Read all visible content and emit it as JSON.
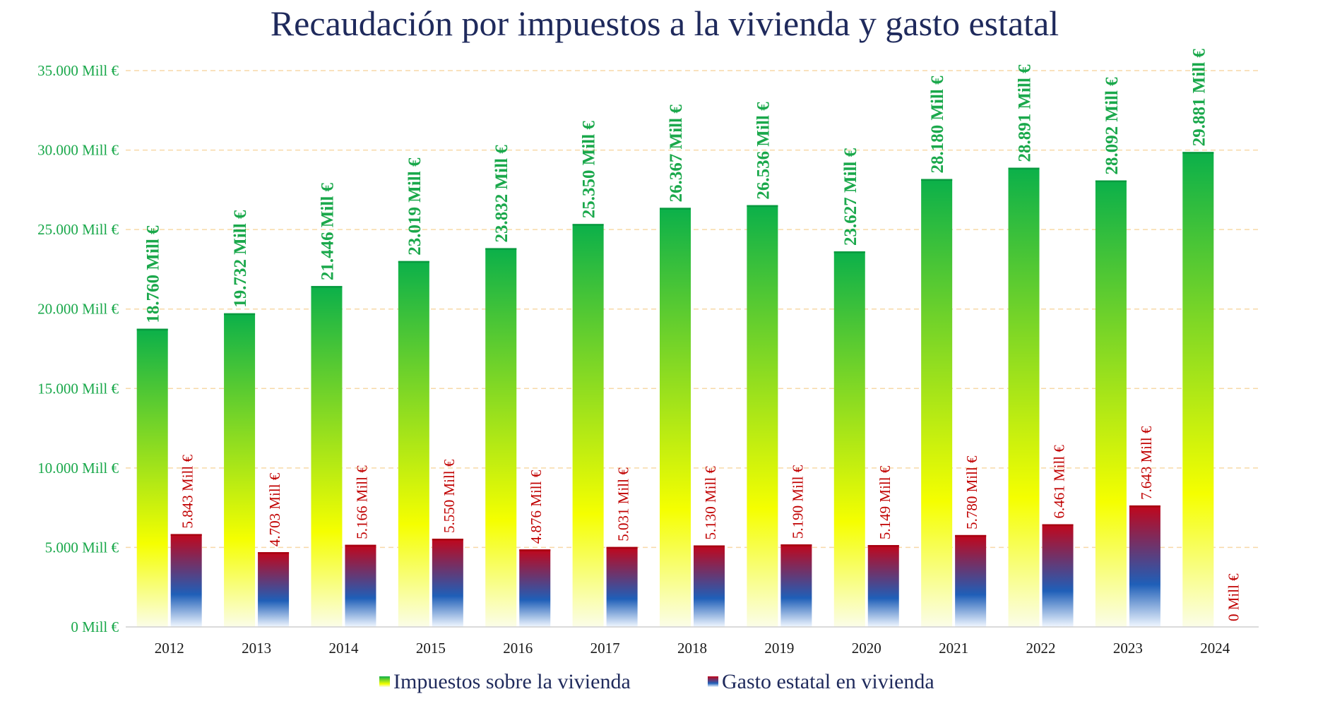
{
  "chart_data": {
    "type": "bar",
    "title": "Recaudación por impuestos a la vivienda y gasto estatal",
    "categories": [
      "2012",
      "2013",
      "2014",
      "2015",
      "2016",
      "2017",
      "2018",
      "2019",
      "2020",
      "2021",
      "2022",
      "2023",
      "2024"
    ],
    "series": [
      {
        "name": "Impuestos sobre la vivienda",
        "values": [
          18760,
          19732,
          21446,
          23019,
          23832,
          25350,
          26367,
          26536,
          23627,
          28180,
          28891,
          28092,
          29881
        ],
        "labels": [
          "18.760 Mill €",
          "19.732 Mill €",
          "21.446 Mill €",
          "23.019 Mill €",
          "23.832 Mill €",
          "25.350 Mill €",
          "26.367 Mill €",
          "26.536 Mill €",
          "23.627 Mill €",
          "28.180 Mill €",
          "28.891 Mill €",
          "28.092 Mill €",
          "29.881 Mill €"
        ],
        "gradient": [
          "#0bb04a",
          "#f5ff00",
          "#fbfde8"
        ],
        "label_color": "#1aa84b"
      },
      {
        "name": "Gasto estatal en vivienda",
        "values": [
          5843,
          4703,
          5166,
          5550,
          4876,
          5031,
          5130,
          5190,
          5149,
          5780,
          6461,
          7643,
          0
        ],
        "labels": [
          "5.843 Mill €",
          "4.703 Mill €",
          "5.166 Mill €",
          "5.550 Mill €",
          "4.876 Mill €",
          "5.031 Mill €",
          "5.130 Mill €",
          "5.190 Mill €",
          "5.149 Mill €",
          "5.780 Mill €",
          "6.461 Mill €",
          "7.643 Mill €",
          "0 Mill €"
        ],
        "gradient": [
          "#c1061b",
          "#1f5fb8",
          "#f0f7ff"
        ],
        "label_color": "#c00000"
      }
    ],
    "ylim": [
      0,
      35000
    ],
    "yticks": [
      0,
      5000,
      10000,
      15000,
      20000,
      25000,
      30000,
      35000
    ],
    "ytick_labels": [
      "0 Mill €",
      "5.000 Mill €",
      "10.000 Mill €",
      "15.000 Mill €",
      "20.000 Mill €",
      "25.000 Mill €",
      "30.000 Mill €",
      "35.000 Mill €"
    ],
    "grid": true,
    "legend": "bottom",
    "colors": {
      "title": "#1f2a5c",
      "axis_text": "#1aa84b",
      "category_text": "#1a1a1a",
      "grid": "#f7d9a8"
    }
  }
}
